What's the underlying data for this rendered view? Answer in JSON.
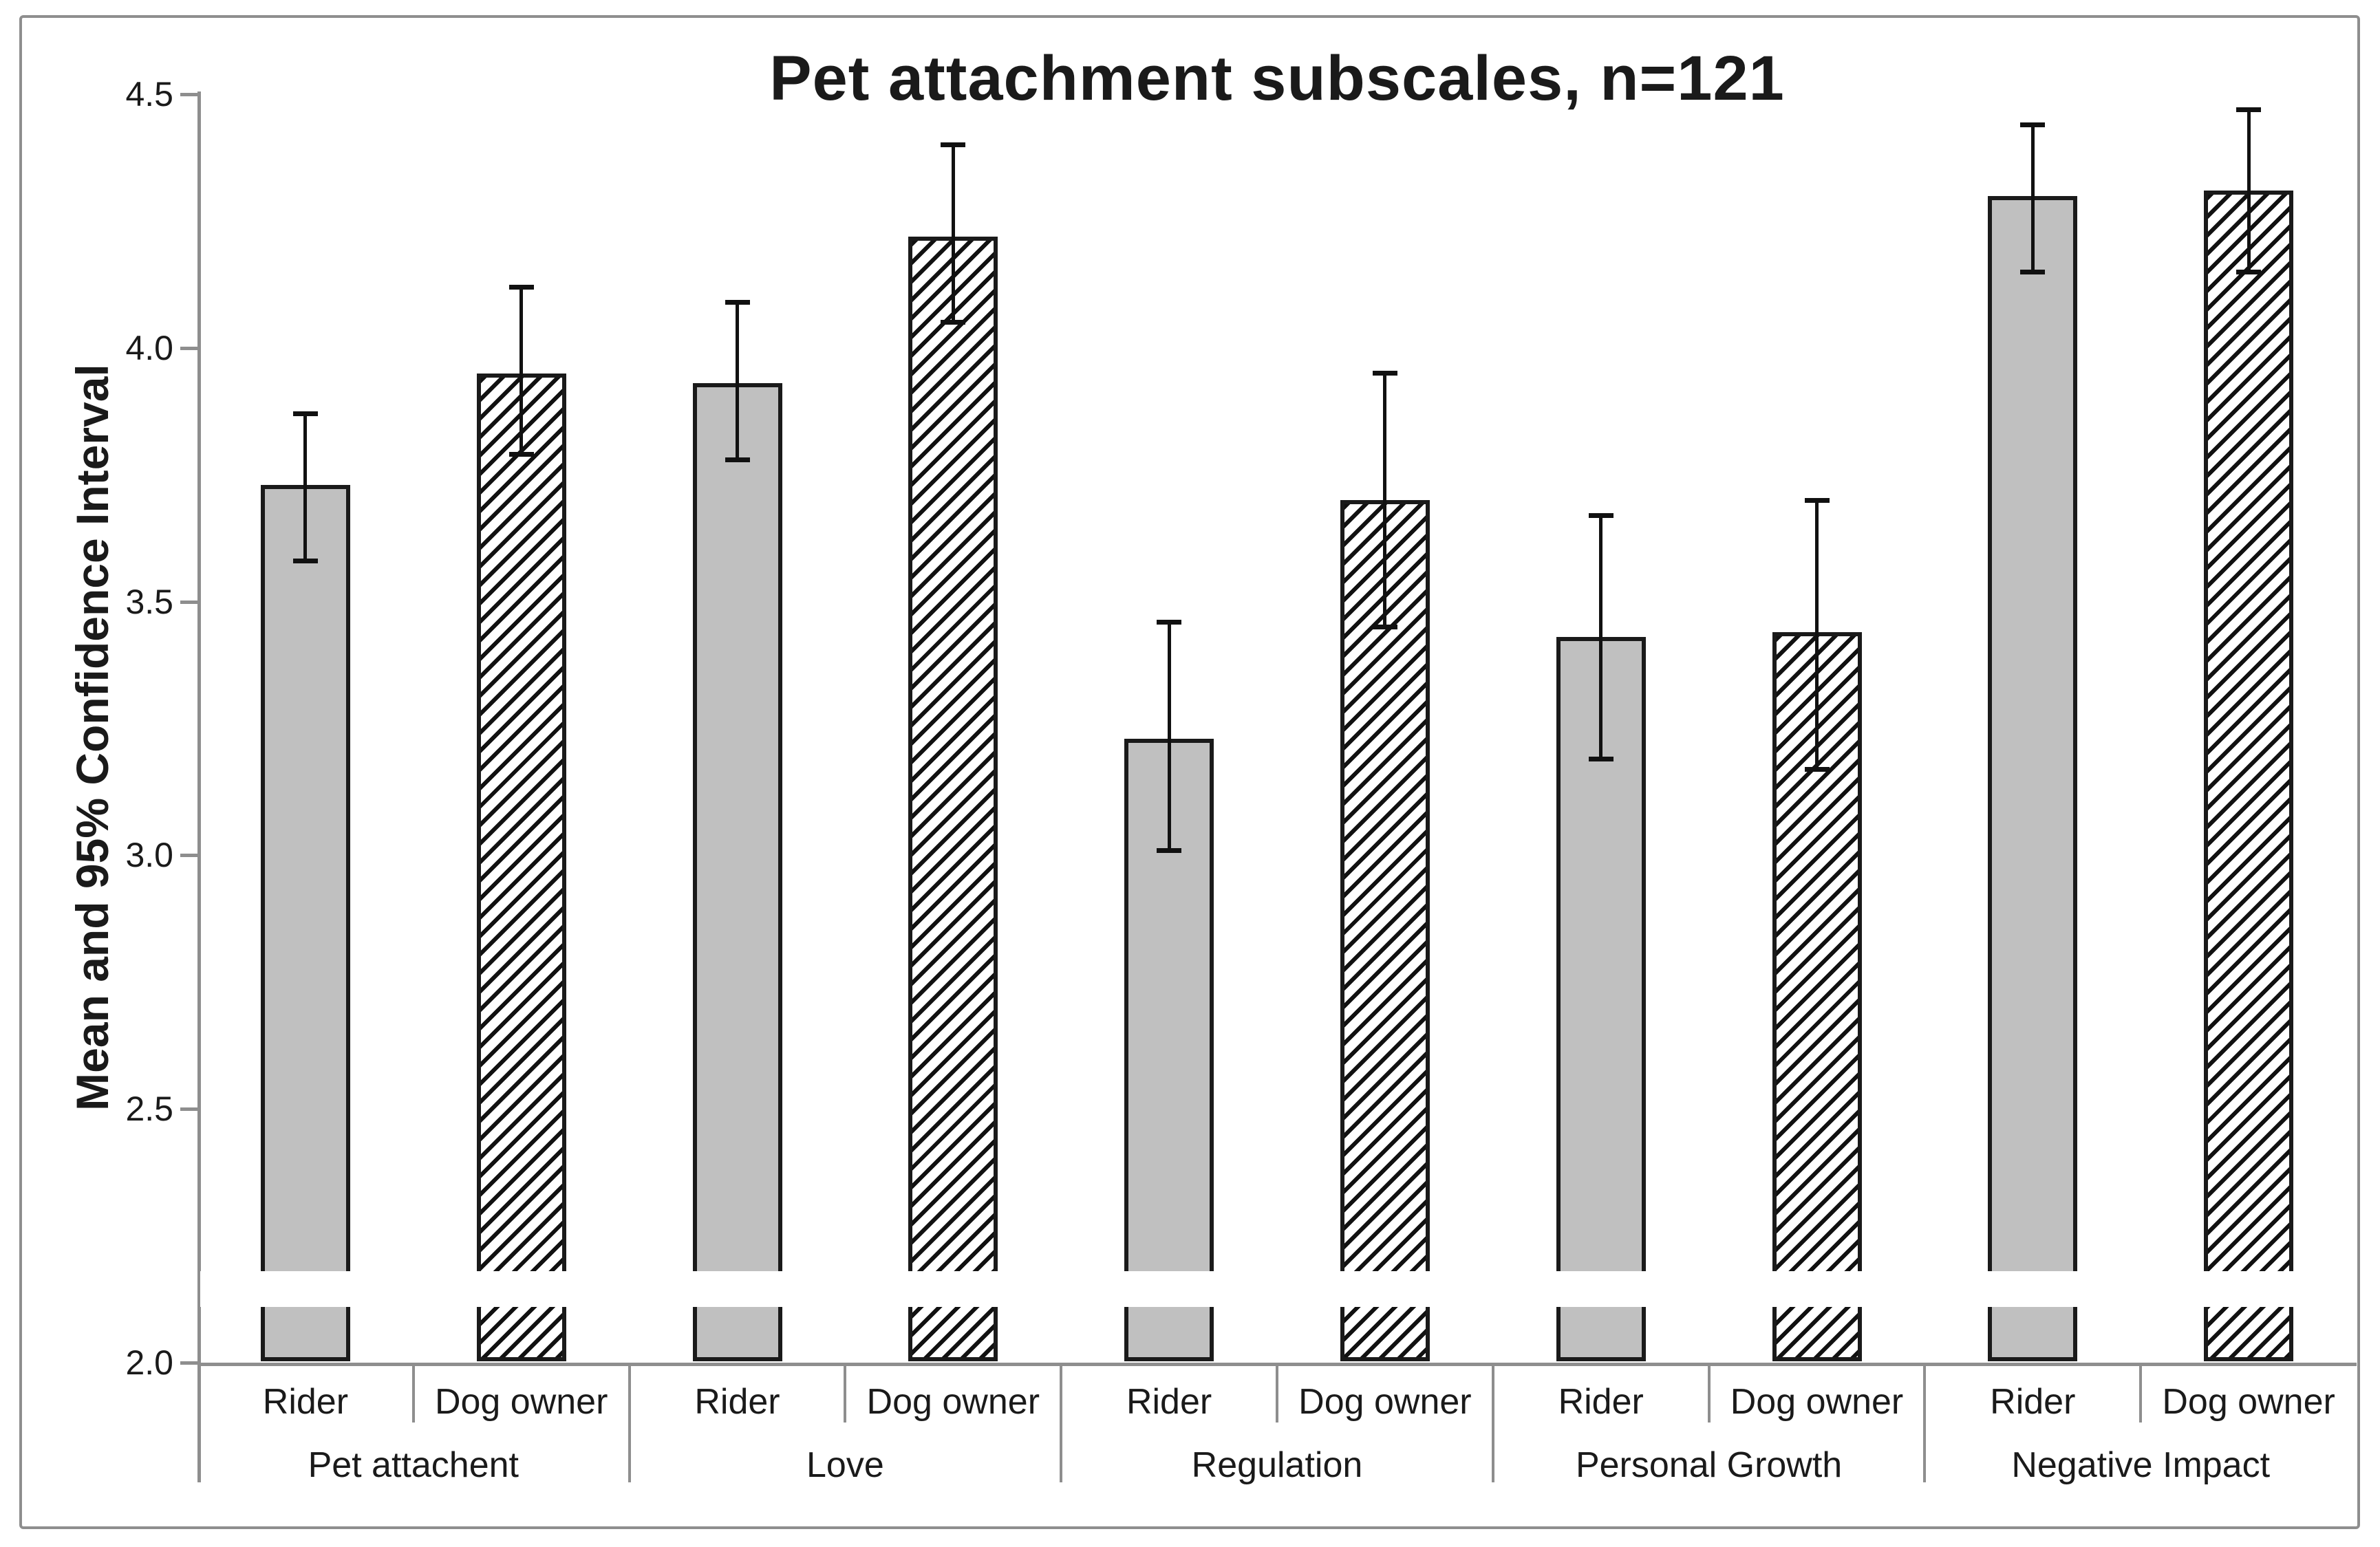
{
  "title": "Pet attachment subscales, n=121",
  "y_axis": {
    "label": "Mean and 95% Confidence Interval",
    "min": 2.0,
    "max": 4.5,
    "tick_labels": [
      "4.5",
      "4.0",
      "3.5",
      "3.0",
      "2.5",
      "2.0"
    ]
  },
  "colors": {
    "rider_bar_fill": "#c0c0c0",
    "bar_outline": "#1a1a1a",
    "axis_line": "#8e8e8e",
    "text": "#1a1a1a"
  },
  "chart_data": {
    "type": "bar",
    "title": "Pet attachment subscales, n=121",
    "xlabel": "",
    "ylabel": "Mean and 95% Confidence Interval",
    "ylim": [
      2.0,
      4.5
    ],
    "tick_step": 0.5,
    "grid": false,
    "legend": "none",
    "error_bars": "95% confidence interval",
    "axis_break_band": [
      2.11,
      2.18
    ],
    "series_labels": [
      "Rider",
      "Dog owner"
    ],
    "bar_styles": {
      "Rider": "solid light gray",
      "Dog owner": "diagonal hatch ///"
    },
    "groups": [
      {
        "label": "Pet attachent",
        "bars": [
          {
            "series": "Rider",
            "mean": 3.73,
            "ci_low": 3.58,
            "ci_high": 3.87
          },
          {
            "series": "Dog owner",
            "mean": 3.95,
            "ci_low": 3.79,
            "ci_high": 4.12
          }
        ]
      },
      {
        "label": "Love",
        "bars": [
          {
            "series": "Rider",
            "mean": 3.93,
            "ci_low": 3.78,
            "ci_high": 4.09
          },
          {
            "series": "Dog owner",
            "mean": 4.22,
            "ci_low": 4.05,
            "ci_high": 4.4
          }
        ]
      },
      {
        "label": "Regulation",
        "bars": [
          {
            "series": "Rider",
            "mean": 3.23,
            "ci_low": 3.01,
            "ci_high": 3.46
          },
          {
            "series": "Dog owner",
            "mean": 3.7,
            "ci_low": 3.45,
            "ci_high": 3.95
          }
        ]
      },
      {
        "label": "Personal Growth",
        "bars": [
          {
            "series": "Rider",
            "mean": 3.43,
            "ci_low": 3.19,
            "ci_high": 3.67
          },
          {
            "series": "Dog owner",
            "mean": 3.44,
            "ci_low": 3.17,
            "ci_high": 3.7
          }
        ]
      },
      {
        "label": "Negative Impact",
        "bars": [
          {
            "series": "Rider",
            "mean": 4.3,
            "ci_low": 4.15,
            "ci_high": 4.44
          },
          {
            "series": "Dog owner",
            "mean": 4.31,
            "ci_low": 4.15,
            "ci_high": 4.47
          }
        ]
      }
    ]
  }
}
